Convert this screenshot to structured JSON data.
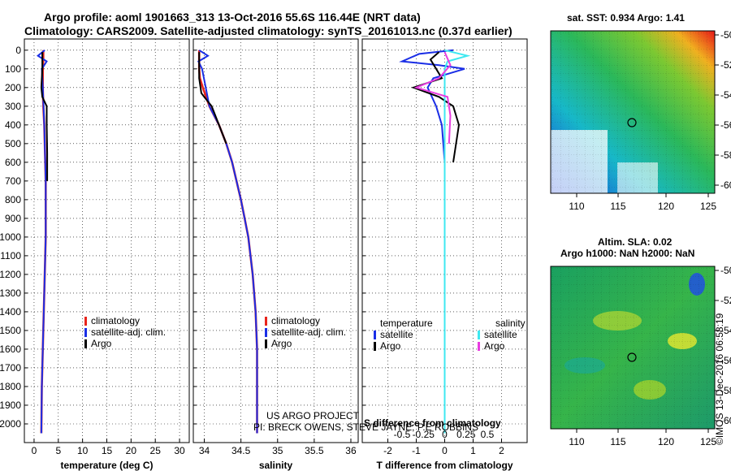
{
  "header": {
    "line1": "Argo profile: aoml 1901663_313 13-Oct-2016 55.6S 116.44E (NRT data)",
    "line2": "Climatology: CARS2009. Satellite-adjusted climatology: synTS_20161013.nc (0.37d earlier)"
  },
  "colors": {
    "climatology": "#e8241c",
    "satellite": "#1a2ee6",
    "argo": "#000000",
    "sat_salinity": "#3ee8f0",
    "argo_salinity": "#e83ce0"
  },
  "depth_ticks": [
    "0",
    "100",
    "200",
    "300",
    "400",
    "500",
    "600",
    "700",
    "800",
    "900",
    "1000",
    "1100",
    "1200",
    "1300",
    "1400",
    "1500",
    "1600",
    "1700",
    "1800",
    "1900",
    "2000"
  ],
  "chart_data": [
    {
      "type": "line",
      "id": "temperature",
      "xlabel": "temperature (deg C)",
      "xlim": [
        -2,
        32
      ],
      "ylim": [
        2100,
        -60
      ],
      "xticks": [
        "0",
        "5",
        "10",
        "15",
        "20",
        "25",
        "30"
      ],
      "legend": [
        "climatology",
        "satellite-adj. clim.",
        "Argo"
      ],
      "series": [
        {
          "name": "climatology",
          "x": [
            1.9,
            1.9,
            1.8,
            1.8,
            1.9,
            2.1,
            2.2,
            2.3,
            2.4,
            2.4,
            2.4,
            2.4,
            2.3,
            2.2,
            2.1,
            2.0,
            1.9,
            1.8,
            1.7,
            1.6,
            1.5
          ],
          "y": [
            0,
            50,
            100,
            200,
            300,
            400,
            500,
            600,
            700,
            800,
            900,
            1000,
            1100,
            1200,
            1300,
            1400,
            1500,
            1600,
            1700,
            1800,
            2050
          ]
        },
        {
          "name": "satellite-adj. clim.",
          "x": [
            2.2,
            0.8,
            2.6,
            1.6,
            1.8,
            2.1,
            2.2,
            2.3,
            2.4,
            2.4,
            2.4,
            2.4,
            2.3,
            2.2,
            2.1,
            2.0,
            1.9,
            1.8,
            1.7,
            1.6,
            1.5
          ],
          "y": [
            0,
            30,
            60,
            100,
            200,
            400,
            500,
            600,
            700,
            800,
            900,
            1000,
            1100,
            1200,
            1300,
            1400,
            1500,
            1600,
            1700,
            1800,
            2050
          ]
        },
        {
          "name": "Argo",
          "x": [
            1.7,
            1.7,
            1.5,
            1.7,
            2.6,
            2.6,
            2.7,
            2.7
          ],
          "y": [
            10,
            100,
            200,
            250,
            300,
            400,
            550,
            700
          ]
        }
      ]
    },
    {
      "type": "line",
      "id": "salinity",
      "xlabel": "salinity",
      "xlim": [
        33.85,
        36.1
      ],
      "ylim": [
        2100,
        -60
      ],
      "xticks": [
        "34",
        "34.5",
        "35",
        "35.5",
        "36"
      ],
      "legend": [
        "climatology",
        "satellite-adj. clim.",
        "Argo"
      ],
      "series": [
        {
          "name": "climatology",
          "x": [
            33.93,
            33.93,
            33.94,
            33.98,
            34.07,
            34.2,
            34.3,
            34.38,
            34.44,
            34.5,
            34.55,
            34.6,
            34.63,
            34.66,
            34.68,
            34.7,
            34.71,
            34.72,
            34.72,
            34.72,
            34.72
          ],
          "y": [
            0,
            100,
            150,
            200,
            300,
            400,
            500,
            600,
            700,
            800,
            900,
            1000,
            1100,
            1200,
            1300,
            1400,
            1500,
            1600,
            1700,
            1800,
            2050
          ]
        },
        {
          "name": "satellite-adj. clim.",
          "x": [
            33.93,
            34.05,
            33.92,
            33.97,
            34.07,
            34.2,
            34.3,
            34.38,
            34.44,
            34.5,
            34.55,
            34.6,
            34.63,
            34.66,
            34.68,
            34.7,
            34.71,
            34.72,
            34.72,
            34.72,
            34.72
          ],
          "y": [
            0,
            30,
            60,
            100,
            300,
            400,
            500,
            600,
            700,
            800,
            900,
            1000,
            1100,
            1200,
            1300,
            1400,
            1500,
            1600,
            1700,
            1800,
            2050
          ]
        },
        {
          "name": "Argo",
          "x": [
            33.93,
            33.93,
            33.96,
            34.02,
            34.1,
            34.2,
            34.3
          ],
          "y": [
            10,
            150,
            230,
            260,
            300,
            400,
            500
          ]
        }
      ]
    },
    {
      "type": "line",
      "id": "difference",
      "xlabel": "T difference from climatology",
      "top_label": "S difference from climatology",
      "xlim": [
        -2.9,
        2.9
      ],
      "ylim": [
        2100,
        -60
      ],
      "xticks": [
        "-2",
        "-1",
        "0",
        "1",
        "2"
      ],
      "top_ticks": [
        "-0.5",
        "-0.25",
        "0",
        "0.25",
        "0.5"
      ],
      "legend_left_title": "temperature",
      "legend_right_title": "salinity",
      "legend_left": [
        "satellite",
        "Argo"
      ],
      "legend_right": [
        "satellite",
        "Argo"
      ],
      "series": [
        {
          "name": "T satellite",
          "x": [
            0.3,
            -0.9,
            -1.5,
            -0.2,
            0.7,
            -0.4,
            -0.6,
            -0.3,
            -0.1,
            0,
            0,
            0,
            0,
            0,
            0,
            0
          ],
          "y": [
            0,
            20,
            60,
            80,
            100,
            150,
            200,
            300,
            400,
            600,
            800,
            900,
            1000,
            1200,
            1400,
            1600
          ]
        },
        {
          "name": "T Argo",
          "x": [
            -0.2,
            -0.5,
            -0.3,
            -0.1,
            -1.1,
            -0.2,
            0.3,
            0.5,
            0.4,
            0.3
          ],
          "y": [
            10,
            50,
            100,
            150,
            200,
            250,
            300,
            400,
            500,
            600
          ]
        },
        {
          "name": "S satellite",
          "x": [
            0,
            0.8,
            0.1,
            0,
            0,
            0,
            0,
            0,
            0,
            0,
            0,
            0,
            0,
            0,
            0,
            0
          ],
          "y": [
            0,
            30,
            60,
            100,
            200,
            400,
            600,
            800,
            1000,
            1200,
            1400,
            1600,
            1800,
            1900,
            2000,
            2050
          ]
        },
        {
          "name": "S Argo",
          "x": [
            0,
            0.2,
            -0.2,
            -1.0,
            0.1,
            0.2,
            0.15
          ],
          "y": [
            10,
            80,
            150,
            200,
            250,
            350,
            500
          ]
        }
      ]
    }
  ],
  "maps": {
    "sst": {
      "title": "sat. SST: 0.934 Argo: 1.41",
      "yticks": [
        "-50",
        "-52",
        "-54",
        "-56",
        "-58",
        "-60"
      ],
      "xticks": [
        "110",
        "115",
        "120",
        "125"
      ]
    },
    "sla": {
      "title1": "Altim. SLA: 0.02",
      "title2": "Argo h1000: NaN h2000: NaN",
      "yticks": [
        "-50",
        "-52",
        "-54",
        "-56",
        "-58",
        "-60"
      ],
      "xticks": [
        "110",
        "115",
        "120",
        "125"
      ]
    }
  },
  "credits": {
    "line1": "US ARGO PROJECT",
    "line2": "PI: BRECK OWENS, STEVE JAYNE, P.E ROBBINS",
    "stamp": "©IMOS 13-Dec-2016 06:58:19"
  }
}
